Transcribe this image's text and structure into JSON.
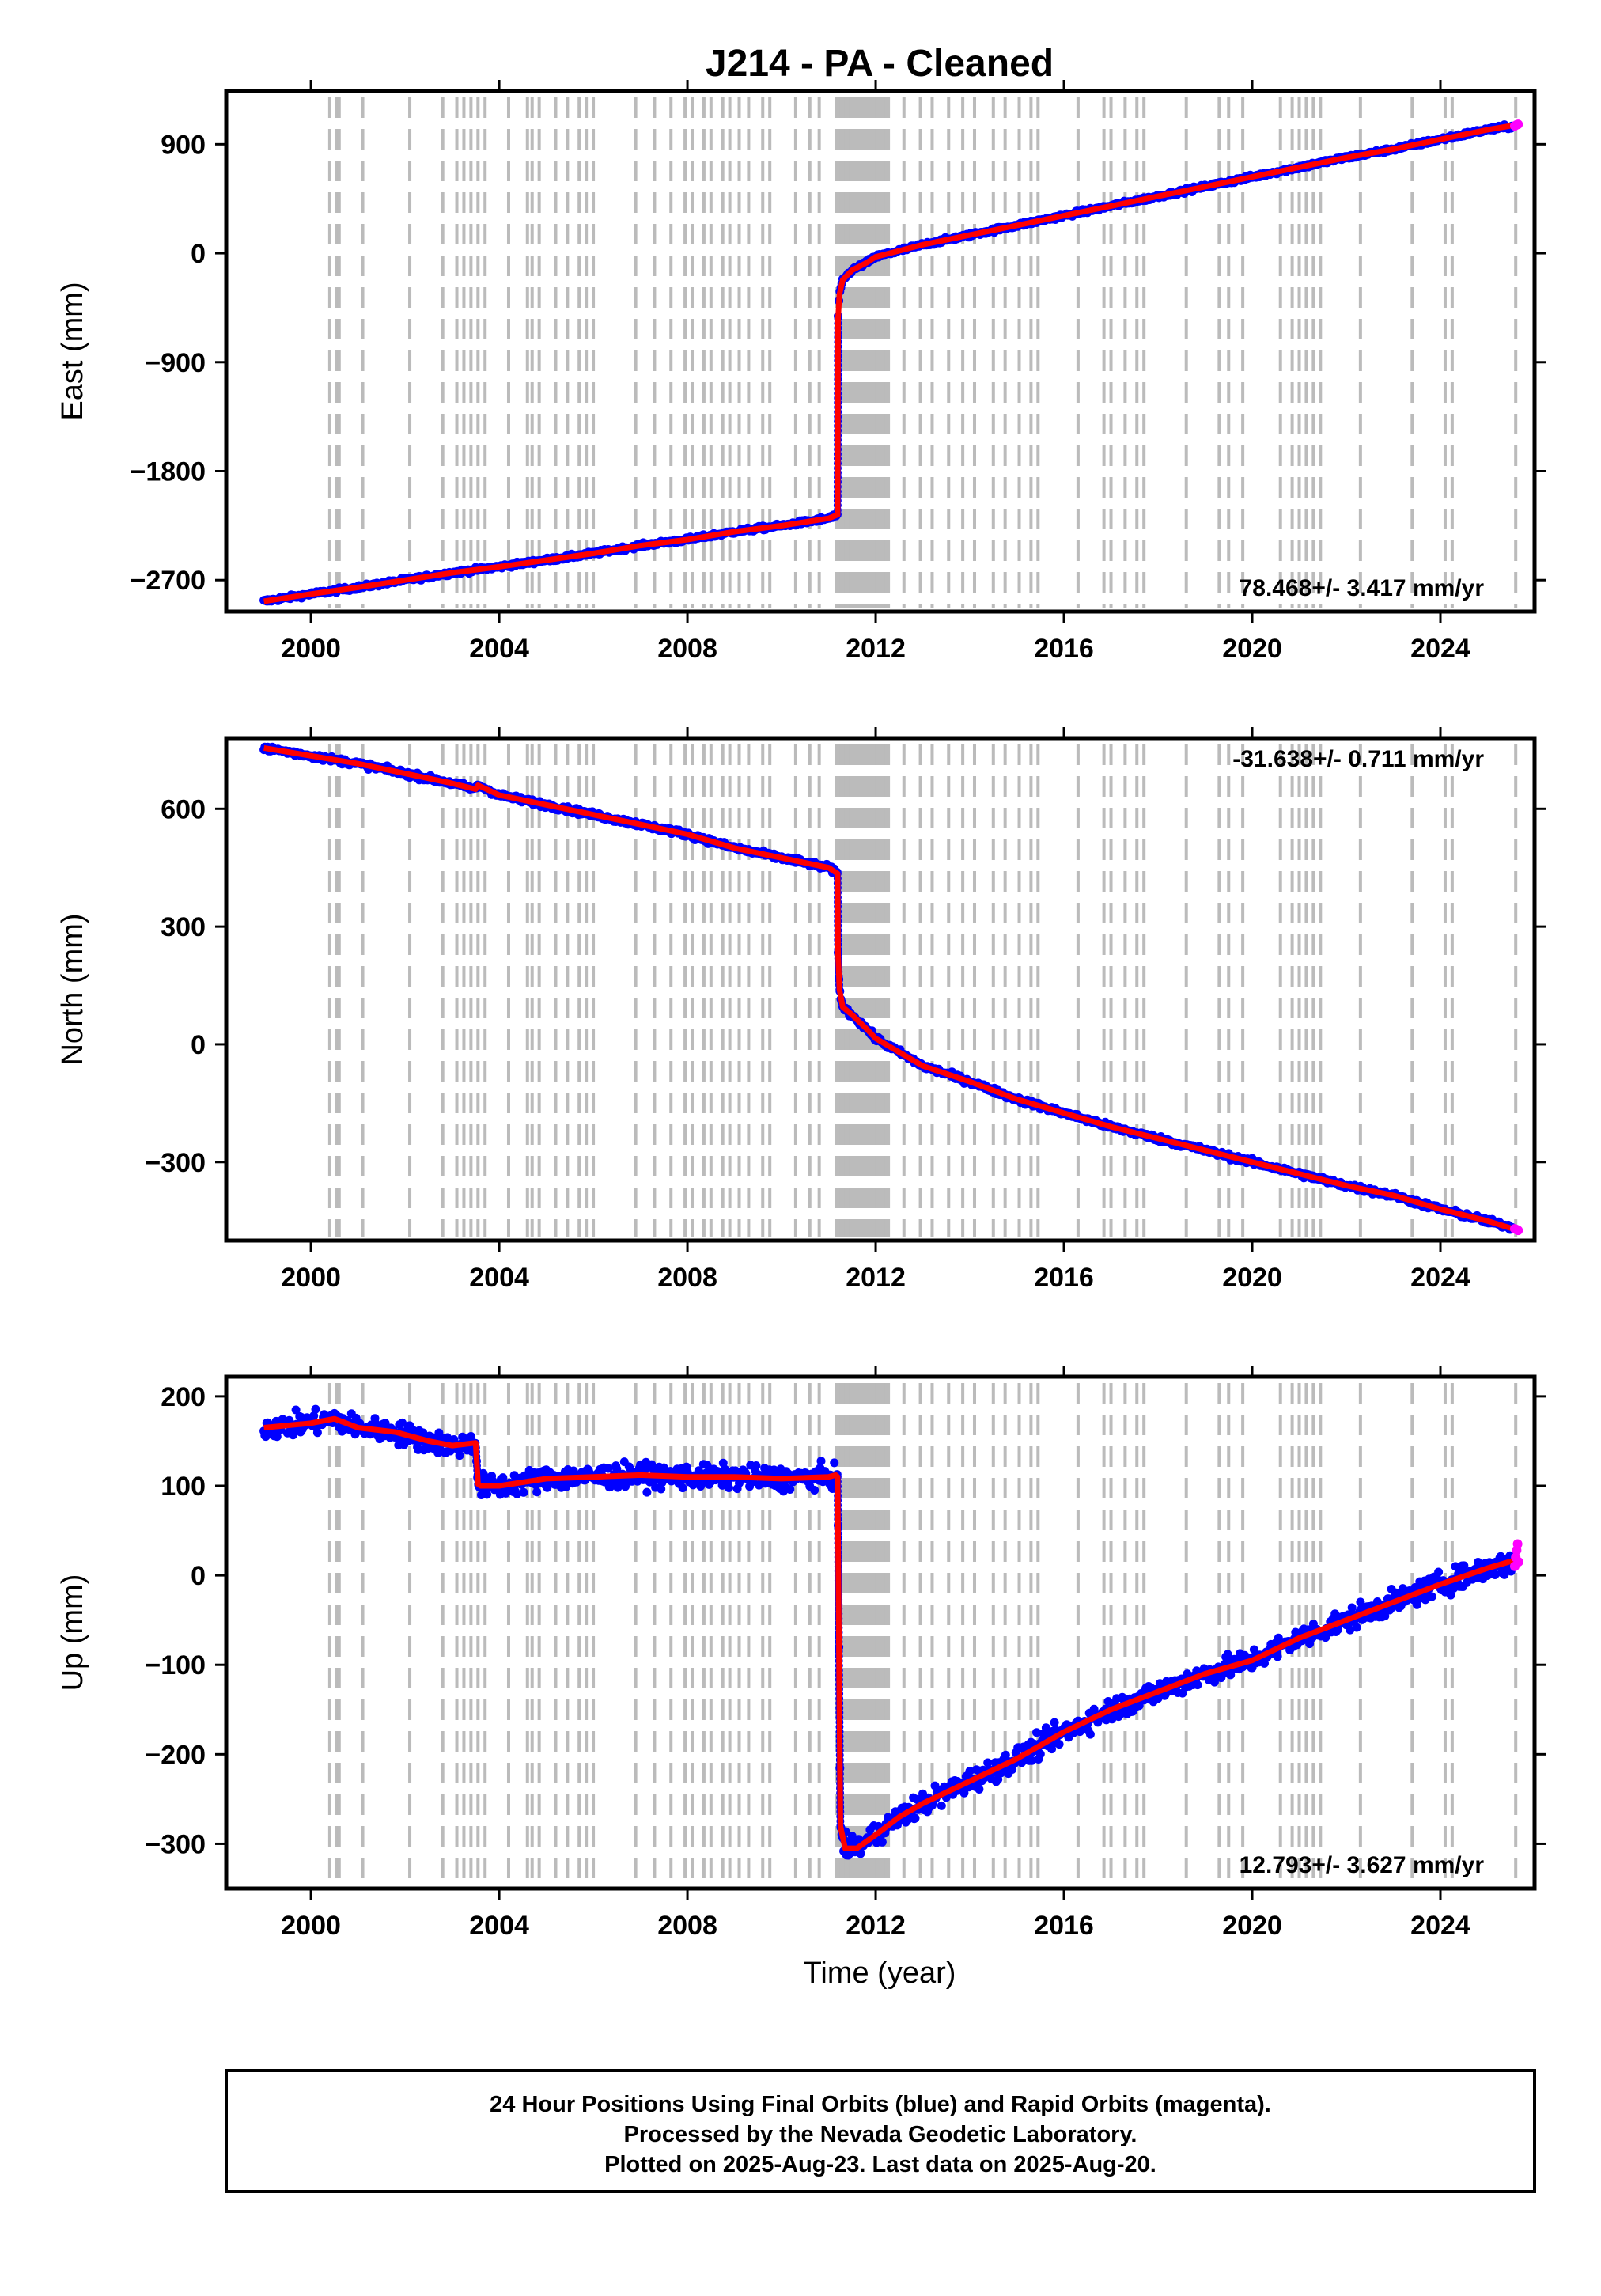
{
  "chart_data": {
    "type": "scatter",
    "title": "J214  - PA - Cleaned",
    "xlabel": "Time (year)",
    "xlim": [
      1998.2,
      2026.0
    ],
    "x_ticks": [
      2000,
      2004,
      2008,
      2012,
      2016,
      2020,
      2024
    ],
    "x_tick_labels": [
      "2000",
      "2004",
      "2008",
      "2012",
      "2016",
      "2020",
      "2024"
    ],
    "colors": {
      "final": "#0000ff",
      "rapid": "#ff00ff",
      "model": "#ff0000",
      "events": "#bbbbbb"
    },
    "event_lines": [
      2000.4,
      2000.55,
      2000.6,
      2001.1,
      2002.1,
      2002.8,
      2003.1,
      2003.25,
      2003.4,
      2003.55,
      2003.7,
      2004.2,
      2004.6,
      2004.7,
      2004.85,
      2005.2,
      2005.45,
      2005.7,
      2005.85,
      2006.0,
      2006.9,
      2007.3,
      2007.65,
      2007.95,
      2008.1,
      2008.35,
      2008.5,
      2008.75,
      2008.9,
      2009.1,
      2009.3,
      2009.6,
      2009.75,
      2010.3,
      2010.6,
      2010.8,
      2011.17,
      2011.22,
      2011.27,
      2011.32,
      2011.37,
      2011.42,
      2011.47,
      2011.52,
      2011.57,
      2011.62,
      2011.67,
      2011.72,
      2011.77,
      2011.82,
      2011.87,
      2011.92,
      2011.97,
      2012.02,
      2012.07,
      2012.12,
      2012.17,
      2012.22,
      2012.27,
      2012.6,
      2012.95,
      2013.2,
      2013.55,
      2013.85,
      2014.1,
      2014.5,
      2014.75,
      2015.05,
      2015.3,
      2015.45,
      2016.3,
      2016.85,
      2017.0,
      2017.3,
      2017.55,
      2017.7,
      2018.6,
      2019.3,
      2019.5,
      2019.8,
      2020.6,
      2020.85,
      2021.0,
      2021.15,
      2021.3,
      2021.45,
      2022.3,
      2023.4,
      2024.1,
      2024.25,
      2025.6
    ],
    "panels": [
      {
        "id": "east",
        "ylabel": "East (mm)",
        "ylim": [
          -2960,
          1340
        ],
        "y_ticks": [
          900,
          0,
          -900,
          -1800,
          -2700
        ],
        "y_tick_labels": [
          "900",
          "0",
          "−900",
          "−1800",
          "−2700"
        ],
        "rate_text": "78.468+/- 3.417 mm/yr",
        "rate_position": "bottom-right",
        "scatter_sd": 12,
        "series": [
          {
            "name": "Final Orbits",
            "color": "#0000ff",
            "x": [
              1999.0,
              2000.0,
              2001.0,
              2002.0,
              2003.0,
              2004.0,
              2005.0,
              2006.0,
              2007.0,
              2008.0,
              2009.0,
              2010.0,
              2011.0,
              2011.19,
              2011.2,
              2011.23,
              2011.3,
              2011.5,
              2011.8,
              2012.0,
              2012.5,
              2013.0,
              2014.0,
              2015.0,
              2016.0,
              2017.0,
              2018.0,
              2019.0,
              2020.0,
              2021.0,
              2022.0,
              2023.0,
              2024.0,
              2025.0,
              2025.55
            ],
            "y": [
              -2875,
              -2815,
              -2760,
              -2700,
              -2640,
              -2590,
              -2535,
              -2480,
              -2415,
              -2365,
              -2300,
              -2250,
              -2190,
              -2160,
              -540,
              -340,
              -220,
              -140,
              -80,
              -30,
              20,
              70,
              150,
              230,
              310,
              390,
              470,
              550,
              630,
              710,
              790,
              860,
              940,
              1020,
              1050
            ]
          },
          {
            "name": "Rapid Orbits",
            "color": "#ff00ff",
            "x": [
              2025.58,
              2025.62,
              2025.65
            ],
            "y": [
              1052,
              1060,
              1065
            ]
          }
        ],
        "model": {
          "x": [
            1999.0,
            2000.0,
            2001.0,
            2002.0,
            2003.0,
            2004.0,
            2005.0,
            2006.0,
            2007.0,
            2008.0,
            2009.0,
            2010.0,
            2011.0,
            2011.19,
            2011.2,
            2011.23,
            2011.3,
            2011.5,
            2011.8,
            2012.0,
            2012.5,
            2013.0,
            2014.0,
            2015.0,
            2016.0,
            2017.0,
            2018.0,
            2019.0,
            2020.0,
            2021.0,
            2022.0,
            2023.0,
            2024.0,
            2025.0,
            2025.65
          ],
          "y": [
            -2875,
            -2815,
            -2760,
            -2700,
            -2640,
            -2590,
            -2535,
            -2480,
            -2415,
            -2365,
            -2300,
            -2250,
            -2190,
            -2160,
            -540,
            -340,
            -220,
            -140,
            -80,
            -30,
            20,
            70,
            150,
            230,
            310,
            390,
            470,
            550,
            630,
            710,
            790,
            860,
            940,
            1020,
            1062
          ]
        }
      },
      {
        "id": "north",
        "ylabel": "North (mm)",
        "ylim": [
          -500,
          780
        ],
        "y_ticks": [
          600,
          300,
          0,
          -300
        ],
        "y_tick_labels": [
          "600",
          "300",
          "0",
          "−300"
        ],
        "rate_text": "-31.638+/- 0.711 mm/yr",
        "rate_position": "top-right",
        "scatter_sd": 5,
        "series": [
          {
            "name": "Final Orbits",
            "color": "#0000ff",
            "x": [
              1999.0,
              2000.0,
              2001.0,
              2002.0,
              2003.0,
              2003.5,
              2003.55,
              2004.0,
              2005.0,
              2006.0,
              2007.0,
              2008.0,
              2009.0,
              2010.0,
              2011.0,
              2011.19,
              2011.2,
              2011.23,
              2011.3,
              2011.5,
              2011.8,
              2012.0,
              2012.5,
              2013.0,
              2014.0,
              2015.0,
              2016.0,
              2017.0,
              2018.0,
              2019.0,
              2020.0,
              2021.0,
              2022.0,
              2023.0,
              2024.0,
              2025.0,
              2025.55
            ],
            "y": [
              755,
              735,
              715,
              690,
              665,
              650,
              660,
              635,
              610,
              585,
              560,
              535,
              500,
              475,
              450,
              435,
              230,
              140,
              95,
              75,
              40,
              15,
              -20,
              -55,
              -95,
              -140,
              -175,
              -210,
              -240,
              -270,
              -300,
              -330,
              -360,
              -385,
              -420,
              -450,
              -468
            ]
          },
          {
            "name": "Rapid Orbits",
            "color": "#ff00ff",
            "x": [
              2025.58,
              2025.62,
              2025.65
            ],
            "y": [
              -470,
              -472,
              -474
            ]
          }
        ],
        "model": {
          "x": [
            1999.0,
            2000.0,
            2001.0,
            2002.0,
            2003.0,
            2003.5,
            2003.55,
            2004.0,
            2005.0,
            2006.0,
            2007.0,
            2008.0,
            2009.0,
            2010.0,
            2011.0,
            2011.19,
            2011.2,
            2011.23,
            2011.3,
            2011.5,
            2011.8,
            2012.0,
            2012.5,
            2013.0,
            2014.0,
            2015.0,
            2016.0,
            2017.0,
            2018.0,
            2019.0,
            2020.0,
            2021.0,
            2022.0,
            2023.0,
            2024.0,
            2025.0,
            2025.65
          ],
          "y": [
            755,
            735,
            715,
            690,
            665,
            650,
            660,
            635,
            610,
            585,
            560,
            535,
            500,
            475,
            450,
            435,
            230,
            140,
            95,
            75,
            40,
            15,
            -20,
            -55,
            -95,
            -140,
            -175,
            -210,
            -240,
            -270,
            -300,
            -330,
            -360,
            -385,
            -420,
            -450,
            -474
          ]
        }
      },
      {
        "id": "up",
        "ylabel": "Up (mm)",
        "ylim": [
          -350,
          222
        ],
        "y_ticks": [
          200,
          100,
          0,
          -100,
          -200,
          -300
        ],
        "y_tick_labels": [
          "200",
          "100",
          "0",
          "−100",
          "−200",
          "−300"
        ],
        "rate_text": "12.793+/- 3.627 mm/yr",
        "rate_position": "bottom-right",
        "scatter_sd": 9,
        "series": [
          {
            "name": "Final Orbits",
            "color": "#0000ff",
            "x": [
              1999.0,
              2000.0,
              2000.5,
              2001.0,
              2001.8,
              2002.5,
              2003.0,
              2003.5,
              2003.55,
              2003.6,
              2004.0,
              2005.0,
              2006.0,
              2007.0,
              2008.0,
              2009.0,
              2010.0,
              2011.0,
              2011.15,
              2011.19,
              2011.25,
              2011.35,
              2011.6,
              2012.0,
              2012.5,
              2013.0,
              2014.0,
              2015.0,
              2016.0,
              2017.0,
              2018.0,
              2019.0,
              2020.0,
              2021.0,
              2022.0,
              2023.0,
              2024.0,
              2025.0,
              2025.55
            ],
            "y": [
              165,
              170,
              175,
              165,
              160,
              150,
              145,
              148,
              102,
              100,
              100,
              108,
              110,
              112,
              110,
              110,
              108,
              110,
              112,
              110,
              -280,
              -305,
              -305,
              -290,
              -270,
              -255,
              -230,
              -205,
              -175,
              -150,
              -130,
              -110,
              -95,
              -70,
              -50,
              -30,
              -10,
              8,
              15
            ]
          },
          {
            "name": "Rapid Orbits",
            "color": "#ff00ff",
            "x": [
              2025.58,
              2025.6,
              2025.62,
              2025.64,
              2025.66
            ],
            "y": [
              10,
              20,
              28,
              35,
              15
            ]
          }
        ],
        "model": {
          "x": [
            1999.0,
            2000.0,
            2000.5,
            2001.0,
            2001.8,
            2002.5,
            2003.0,
            2003.5,
            2003.55,
            2003.6,
            2004.0,
            2005.0,
            2006.0,
            2007.0,
            2008.0,
            2009.0,
            2010.0,
            2011.0,
            2011.15,
            2011.19,
            2011.25,
            2011.35,
            2011.6,
            2012.0,
            2012.5,
            2013.0,
            2014.0,
            2015.0,
            2016.0,
            2017.0,
            2018.0,
            2019.0,
            2020.0,
            2021.0,
            2022.0,
            2023.0,
            2024.0,
            2025.0,
            2025.65
          ],
          "y": [
            165,
            170,
            175,
            165,
            160,
            150,
            145,
            148,
            102,
            100,
            100,
            108,
            110,
            112,
            110,
            110,
            108,
            110,
            112,
            110,
            -280,
            -305,
            -305,
            -290,
            -270,
            -255,
            -230,
            -205,
            -175,
            -150,
            -130,
            -110,
            -95,
            -70,
            -50,
            -30,
            -10,
            8,
            18
          ]
        }
      }
    ]
  },
  "footer": {
    "line1": "24 Hour Positions Using Final Orbits (blue) and Rapid Orbits (magenta).",
    "line2": "Processed by the Nevada Geodetic Laboratory.",
    "line3": "Plotted on 2025-Aug-23. Last data on 2025-Aug-20."
  }
}
